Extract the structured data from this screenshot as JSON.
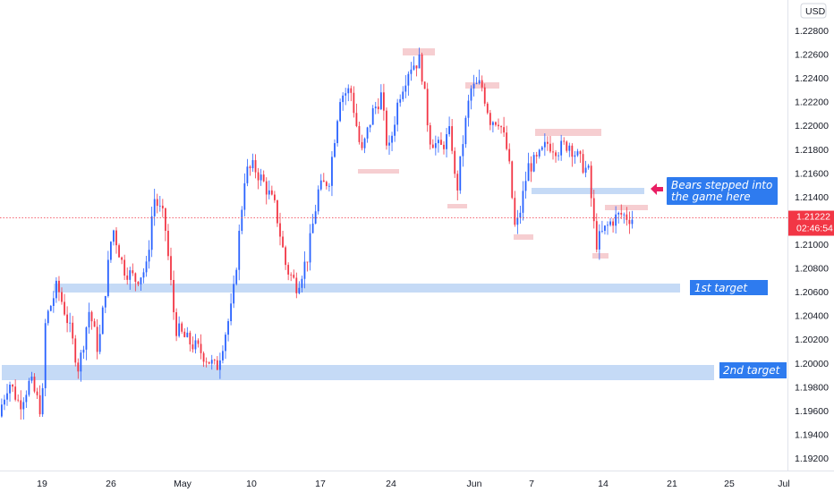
{
  "header": {
    "currency": "USD"
  },
  "price_label": {
    "price": "1.21222",
    "countdown": "02:46:54"
  },
  "annotations": {
    "bears": [
      "Bears stepped into",
      "the game here"
    ],
    "target1": "1st target",
    "target2": "2nd target"
  },
  "colors": {
    "bull": "#2962ff",
    "bear": "#f23645",
    "support_zone": "#bbd3f5",
    "resistance_zone": "#f5c5c9",
    "label_bg": "#2e7bef",
    "arrow": "#e91e63",
    "current_price": "#f23645"
  },
  "chart_data": {
    "type": "candlestick",
    "symbol_currency": "USD",
    "x_tick_labels": [
      "19",
      "26",
      "May",
      "10",
      "17",
      "24",
      "Jun",
      "7",
      "14",
      "21",
      "25",
      "Jul"
    ],
    "y_tick_labels": [
      "1.22800",
      "1.22600",
      "1.22400",
      "1.22200",
      "1.22000",
      "1.21800",
      "1.21600",
      "1.21400",
      "1.21200",
      "1.21000",
      "1.20800",
      "1.20600",
      "1.20400",
      "1.20200",
      "1.20000",
      "1.19800",
      "1.19600",
      "1.19400",
      "1.19200"
    ],
    "ylim": [
      1.1912,
      1.2302
    ],
    "current_price": 1.21222,
    "price_path": [
      [
        0,
        1.1955
      ],
      [
        12,
        1.1985
      ],
      [
        24,
        1.1965
      ],
      [
        36,
        1.1985
      ],
      [
        49,
        1.1958
      ],
      [
        53,
        1.2035
      ],
      [
        66,
        1.2065
      ],
      [
        78,
        1.2035
      ],
      [
        90,
        1.1995
      ],
      [
        102,
        1.2045
      ],
      [
        112,
        1.201
      ],
      [
        128,
        1.2115
      ],
      [
        140,
        1.208
      ],
      [
        154,
        1.207
      ],
      [
        166,
        1.208
      ],
      [
        174,
        1.214
      ],
      [
        186,
        1.212
      ],
      [
        198,
        1.203
      ],
      [
        210,
        1.202
      ],
      [
        226,
        1.201
      ],
      [
        244,
        1.1995
      ],
      [
        262,
        1.205
      ],
      [
        276,
        1.216
      ],
      [
        286,
        1.2165
      ],
      [
        298,
        1.215
      ],
      [
        310,
        1.213
      ],
      [
        322,
        1.208
      ],
      [
        334,
        1.2065
      ],
      [
        346,
        1.209
      ],
      [
        358,
        1.2145
      ],
      [
        370,
        1.2155
      ],
      [
        382,
        1.2225
      ],
      [
        394,
        1.223
      ],
      [
        406,
        1.2175
      ],
      [
        418,
        1.221
      ],
      [
        428,
        1.2225
      ],
      [
        436,
        1.2175
      ],
      [
        448,
        1.2225
      ],
      [
        460,
        1.225
      ],
      [
        472,
        1.2255
      ],
      [
        482,
        1.219
      ],
      [
        494,
        1.218
      ],
      [
        506,
        1.2195
      ],
      [
        512,
        1.214
      ],
      [
        520,
        1.219
      ],
      [
        528,
        1.223
      ],
      [
        540,
        1.2235
      ],
      [
        550,
        1.2205
      ],
      [
        560,
        1.2205
      ],
      [
        570,
        1.2175
      ],
      [
        578,
        1.211
      ],
      [
        584,
        1.213
      ],
      [
        592,
        1.2165
      ],
      [
        602,
        1.217
      ],
      [
        614,
        1.2185
      ],
      [
        626,
        1.218
      ],
      [
        638,
        1.2185
      ],
      [
        650,
        1.217
      ],
      [
        660,
        1.216
      ],
      [
        668,
        1.21
      ],
      [
        676,
        1.211
      ],
      [
        686,
        1.212
      ],
      [
        696,
        1.2125
      ],
      [
        708,
        1.2122
      ]
    ],
    "support_zones": [
      {
        "label": "1st target",
        "range": [
          1.2062,
          1.2071
        ]
      },
      {
        "label": "2nd target",
        "range": [
          1.1986,
          1.2
        ]
      }
    ],
    "grid": false
  }
}
